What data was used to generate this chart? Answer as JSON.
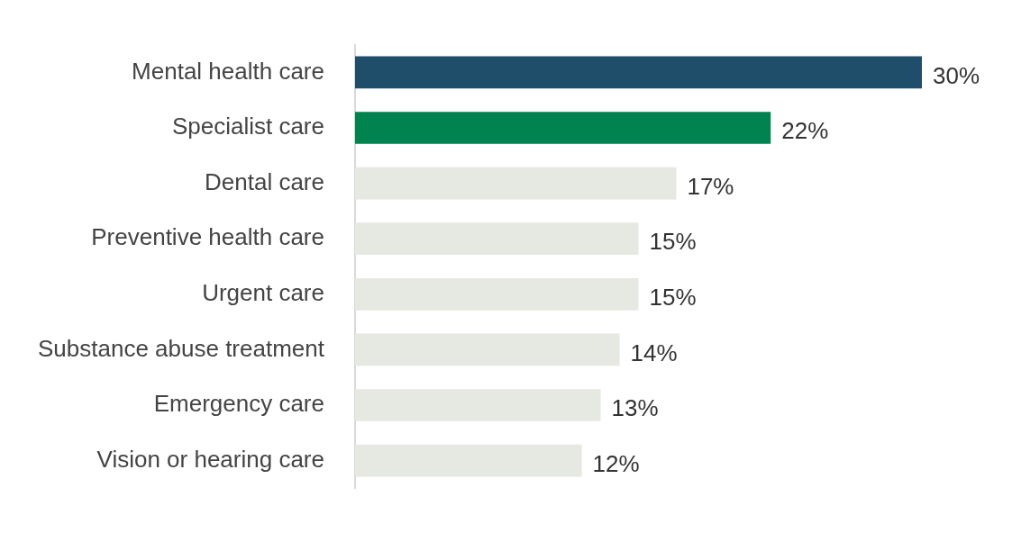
{
  "chart_data": {
    "type": "bar",
    "orientation": "horizontal",
    "categories": [
      "Mental health care",
      "Specialist care",
      "Dental care",
      "Preventive health care",
      "Urgent care",
      "Substance abuse treatment",
      "Emergency care",
      "Vision or hearing care"
    ],
    "values": [
      30,
      22,
      17,
      15,
      15,
      14,
      13,
      12
    ],
    "colors": [
      "#1f4e6b",
      "#00834f",
      "#e6e8e2",
      "#e6e8e2",
      "#e6e8e2",
      "#e6e8e2",
      "#e6e8e2",
      "#e6e8e2"
    ],
    "value_labels": [
      "30%",
      "22%",
      "17%",
      "15%",
      "15%",
      "14%",
      "13%",
      "12%"
    ],
    "legend": false
  }
}
